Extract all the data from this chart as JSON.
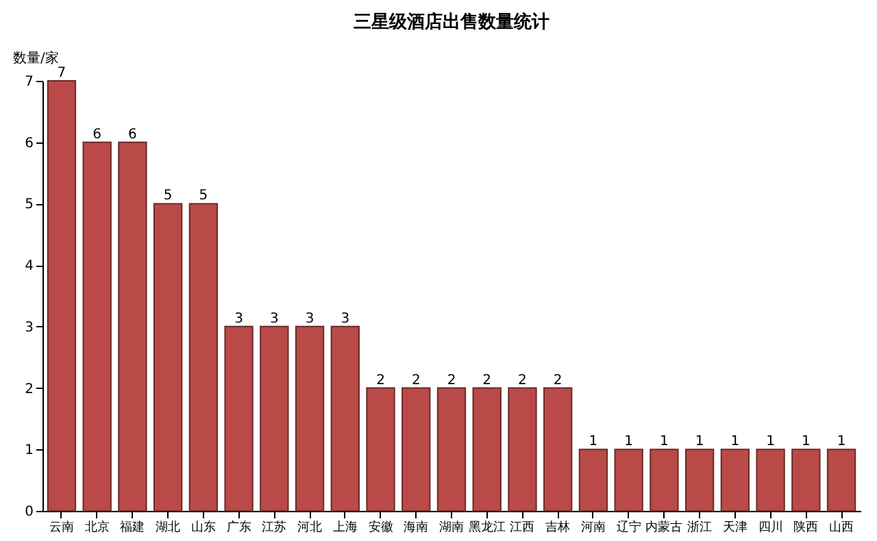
{
  "chart_data": {
    "type": "bar",
    "title": "三星级酒店出售数量统计",
    "ylabel": "数量/家",
    "categories": [
      "云南",
      "北京",
      "福建",
      "湖北",
      "山东",
      "广东",
      "江苏",
      "河北",
      "上海",
      "安徽",
      "海南",
      "湖南",
      "黑龙江",
      "江西",
      "吉林",
      "河南",
      "辽宁",
      "内蒙古",
      "浙江",
      "天津",
      "四川",
      "陕西",
      "山西"
    ],
    "values": [
      7,
      6,
      6,
      5,
      5,
      3,
      3,
      3,
      3,
      2,
      2,
      2,
      2,
      2,
      2,
      1,
      1,
      1,
      1,
      1,
      1,
      1,
      1
    ],
    "color": "#b94a48",
    "ylim": [
      0,
      7
    ],
    "yticks": [
      0,
      1,
      2,
      3,
      4,
      5,
      6,
      7
    ],
    "grid": false,
    "data_labels": true
  }
}
